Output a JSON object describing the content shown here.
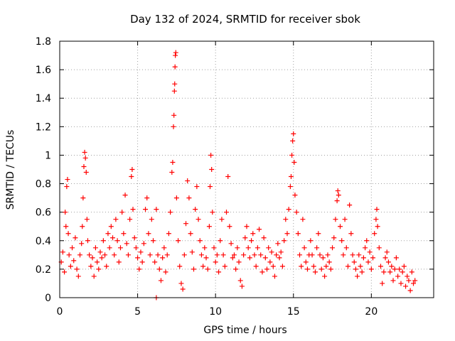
{
  "chart_data": {
    "type": "scatter",
    "title": "Day 132 of 2024, SRMTID for receiver sbok",
    "xlabel": "GPS time / hours",
    "ylabel": "SRMTID / TECUs",
    "xlim": [
      0,
      24
    ],
    "ylim": [
      0,
      1.8
    ],
    "xticks": [
      0,
      5,
      10,
      15,
      20
    ],
    "xtick_labels": [
      "0",
      "5",
      "10",
      "15",
      "20"
    ],
    "yticks": [
      0,
      0.2,
      0.4,
      0.6,
      0.8,
      1,
      1.2,
      1.4,
      1.6,
      1.8
    ],
    "ytick_labels": [
      "0",
      "0.2",
      "0.4",
      "0.6",
      "0.8",
      "1",
      "1.2",
      "1.4",
      "1.6",
      "1.8"
    ],
    "grid": true,
    "marker": "plus",
    "series": [
      {
        "name": "SRMTID",
        "color": "#ff0000",
        "points": [
          [
            0.1,
            0.25
          ],
          [
            0.2,
            0.32
          ],
          [
            0.3,
            0.18
          ],
          [
            0.35,
            0.6
          ],
          [
            0.4,
            0.5
          ],
          [
            0.45,
            0.78
          ],
          [
            0.5,
            0.83
          ],
          [
            0.55,
            0.45
          ],
          [
            0.6,
            0.3
          ],
          [
            0.7,
            0.22
          ],
          [
            0.8,
            0.35
          ],
          [
            0.9,
            0.26
          ],
          [
            1.0,
            0.42
          ],
          [
            1.1,
            0.2
          ],
          [
            1.2,
            0.15
          ],
          [
            1.3,
            0.3
          ],
          [
            1.4,
            0.38
          ],
          [
            1.45,
            0.5
          ],
          [
            1.5,
            0.7
          ],
          [
            1.55,
            0.92
          ],
          [
            1.6,
            1.02
          ],
          [
            1.65,
            0.98
          ],
          [
            1.7,
            0.88
          ],
          [
            1.75,
            0.55
          ],
          [
            1.8,
            0.4
          ],
          [
            1.9,
            0.3
          ],
          [
            2.0,
            0.22
          ],
          [
            2.1,
            0.28
          ],
          [
            2.2,
            0.15
          ],
          [
            2.3,
            0.35
          ],
          [
            2.4,
            0.25
          ],
          [
            2.5,
            0.2
          ],
          [
            2.6,
            0.32
          ],
          [
            2.7,
            0.28
          ],
          [
            2.8,
            0.4
          ],
          [
            2.9,
            0.3
          ],
          [
            3.0,
            0.22
          ],
          [
            3.1,
            0.45
          ],
          [
            3.2,
            0.35
          ],
          [
            3.3,
            0.5
          ],
          [
            3.4,
            0.42
          ],
          [
            3.5,
            0.3
          ],
          [
            3.6,
            0.55
          ],
          [
            3.7,
            0.4
          ],
          [
            3.8,
            0.25
          ],
          [
            3.9,
            0.35
          ],
          [
            4.0,
            0.6
          ],
          [
            4.1,
            0.45
          ],
          [
            4.2,
            0.72
          ],
          [
            4.3,
            0.38
          ],
          [
            4.4,
            0.3
          ],
          [
            4.5,
            0.55
          ],
          [
            4.6,
            0.85
          ],
          [
            4.65,
            0.9
          ],
          [
            4.7,
            0.62
          ],
          [
            4.8,
            0.42
          ],
          [
            4.9,
            0.35
          ],
          [
            5.0,
            0.28
          ],
          [
            5.1,
            0.2
          ],
          [
            5.2,
            0.32
          ],
          [
            5.3,
            0.25
          ],
          [
            5.4,
            0.38
          ],
          [
            5.5,
            0.62
          ],
          [
            5.6,
            0.7
          ],
          [
            5.7,
            0.45
          ],
          [
            5.8,
            0.3
          ],
          [
            5.9,
            0.55
          ],
          [
            6.0,
            0.4
          ],
          [
            6.1,
            0.25
          ],
          [
            6.2,
            0.62
          ],
          [
            6.3,
            0.3
          ],
          [
            6.4,
            0.2
          ],
          [
            6.5,
            0.12
          ],
          [
            6.6,
            0.28
          ],
          [
            6.7,
            0.35
          ],
          [
            6.8,
            0.18
          ],
          [
            6.9,
            0.3
          ],
          [
            7.0,
            0.45
          ],
          [
            7.1,
            0.6
          ],
          [
            7.2,
            0.88
          ],
          [
            7.25,
            0.95
          ],
          [
            7.3,
            1.2
          ],
          [
            7.33,
            1.28
          ],
          [
            7.36,
            1.45
          ],
          [
            7.38,
            1.5
          ],
          [
            7.4,
            1.62
          ],
          [
            7.42,
            1.7
          ],
          [
            7.45,
            1.72
          ],
          [
            7.5,
            0.7
          ],
          [
            7.6,
            0.4
          ],
          [
            7.7,
            0.22
          ],
          [
            7.8,
            0.1
          ],
          [
            7.9,
            0.06
          ],
          [
            8.0,
            0.3
          ],
          [
            8.1,
            0.52
          ],
          [
            8.2,
            0.82
          ],
          [
            8.3,
            0.7
          ],
          [
            8.4,
            0.45
          ],
          [
            8.5,
            0.32
          ],
          [
            8.6,
            0.2
          ],
          [
            8.7,
            0.62
          ],
          [
            8.8,
            0.78
          ],
          [
            8.9,
            0.55
          ],
          [
            9.0,
            0.4
          ],
          [
            9.1,
            0.3
          ],
          [
            9.2,
            0.22
          ],
          [
            9.3,
            0.35
          ],
          [
            9.4,
            0.28
          ],
          [
            9.5,
            0.2
          ],
          [
            9.6,
            0.5
          ],
          [
            9.65,
            0.78
          ],
          [
            9.7,
            1.0
          ],
          [
            9.75,
            0.9
          ],
          [
            9.8,
            0.6
          ],
          [
            9.9,
            0.35
          ],
          [
            10.0,
            0.25
          ],
          [
            10.1,
            0.3
          ],
          [
            10.2,
            0.18
          ],
          [
            10.3,
            0.4
          ],
          [
            10.4,
            0.55
          ],
          [
            10.5,
            0.3
          ],
          [
            10.6,
            0.22
          ],
          [
            10.7,
            0.6
          ],
          [
            10.8,
            0.85
          ],
          [
            10.9,
            0.5
          ],
          [
            11.0,
            0.38
          ],
          [
            11.1,
            0.28
          ],
          [
            11.2,
            0.3
          ],
          [
            11.3,
            0.2
          ],
          [
            11.4,
            0.35
          ],
          [
            11.5,
            0.25
          ],
          [
            11.6,
            0.12
          ],
          [
            11.7,
            0.08
          ],
          [
            11.8,
            0.3
          ],
          [
            11.9,
            0.42
          ],
          [
            12.0,
            0.5
          ],
          [
            12.1,
            0.35
          ],
          [
            12.2,
            0.28
          ],
          [
            12.3,
            0.4
          ],
          [
            12.4,
            0.45
          ],
          [
            12.5,
            0.3
          ],
          [
            12.6,
            0.22
          ],
          [
            12.7,
            0.35
          ],
          [
            12.8,
            0.48
          ],
          [
            12.9,
            0.3
          ],
          [
            13.0,
            0.18
          ],
          [
            13.1,
            0.42
          ],
          [
            13.2,
            0.28
          ],
          [
            13.3,
            0.2
          ],
          [
            13.4,
            0.35
          ],
          [
            13.5,
            0.25
          ],
          [
            13.6,
            0.32
          ],
          [
            13.7,
            0.22
          ],
          [
            13.8,
            0.15
          ],
          [
            13.9,
            0.3
          ],
          [
            14.0,
            0.38
          ],
          [
            14.1,
            0.28
          ],
          [
            14.2,
            0.32
          ],
          [
            14.3,
            0.22
          ],
          [
            14.4,
            0.4
          ],
          [
            14.5,
            0.55
          ],
          [
            14.6,
            0.45
          ],
          [
            14.7,
            0.62
          ],
          [
            14.8,
            0.78
          ],
          [
            14.85,
            0.85
          ],
          [
            14.9,
            1.0
          ],
          [
            14.95,
            1.1
          ],
          [
            15.0,
            1.15
          ],
          [
            15.05,
            0.95
          ],
          [
            15.1,
            0.72
          ],
          [
            15.2,
            0.6
          ],
          [
            15.3,
            0.45
          ],
          [
            15.4,
            0.3
          ],
          [
            15.5,
            0.22
          ],
          [
            15.6,
            0.55
          ],
          [
            15.7,
            0.35
          ],
          [
            15.8,
            0.25
          ],
          [
            15.9,
            0.2
          ],
          [
            16.0,
            0.3
          ],
          [
            16.1,
            0.4
          ],
          [
            16.2,
            0.3
          ],
          [
            16.3,
            0.22
          ],
          [
            16.4,
            0.18
          ],
          [
            16.5,
            0.35
          ],
          [
            16.6,
            0.45
          ],
          [
            16.7,
            0.3
          ],
          [
            16.8,
            0.2
          ],
          [
            16.9,
            0.28
          ],
          [
            17.0,
            0.15
          ],
          [
            17.1,
            0.22
          ],
          [
            17.2,
            0.3
          ],
          [
            17.3,
            0.25
          ],
          [
            17.4,
            0.2
          ],
          [
            17.5,
            0.35
          ],
          [
            17.6,
            0.42
          ],
          [
            17.7,
            0.55
          ],
          [
            17.8,
            0.68
          ],
          [
            17.85,
            0.75
          ],
          [
            17.9,
            0.72
          ],
          [
            18.0,
            0.5
          ],
          [
            18.1,
            0.4
          ],
          [
            18.2,
            0.3
          ],
          [
            18.3,
            0.55
          ],
          [
            18.4,
            0.35
          ],
          [
            18.5,
            0.22
          ],
          [
            18.6,
            0.65
          ],
          [
            18.7,
            0.45
          ],
          [
            18.8,
            0.3
          ],
          [
            18.9,
            0.25
          ],
          [
            19.0,
            0.2
          ],
          [
            19.1,
            0.15
          ],
          [
            19.2,
            0.3
          ],
          [
            19.3,
            0.22
          ],
          [
            19.4,
            0.18
          ],
          [
            19.5,
            0.28
          ],
          [
            19.6,
            0.35
          ],
          [
            19.7,
            0.4
          ],
          [
            19.8,
            0.25
          ],
          [
            19.9,
            0.32
          ],
          [
            20.0,
            0.2
          ],
          [
            20.1,
            0.28
          ],
          [
            20.2,
            0.45
          ],
          [
            20.3,
            0.55
          ],
          [
            20.35,
            0.62
          ],
          [
            20.4,
            0.5
          ],
          [
            20.5,
            0.35
          ],
          [
            20.6,
            0.22
          ],
          [
            20.7,
            0.1
          ],
          [
            20.8,
            0.18
          ],
          [
            20.9,
            0.28
          ],
          [
            21.0,
            0.32
          ],
          [
            21.1,
            0.25
          ],
          [
            21.2,
            0.18
          ],
          [
            21.3,
            0.22
          ],
          [
            21.4,
            0.12
          ],
          [
            21.5,
            0.2
          ],
          [
            21.6,
            0.28
          ],
          [
            21.7,
            0.15
          ],
          [
            21.8,
            0.2
          ],
          [
            21.9,
            0.1
          ],
          [
            22.0,
            0.18
          ],
          [
            22.1,
            0.22
          ],
          [
            22.2,
            0.08
          ],
          [
            22.3,
            0.15
          ],
          [
            22.4,
            0.12
          ],
          [
            22.5,
            0.05
          ],
          [
            22.6,
            0.18
          ],
          [
            22.7,
            0.1
          ],
          [
            22.8,
            0.12
          ],
          [
            6.2,
            0.0
          ]
        ]
      }
    ]
  }
}
